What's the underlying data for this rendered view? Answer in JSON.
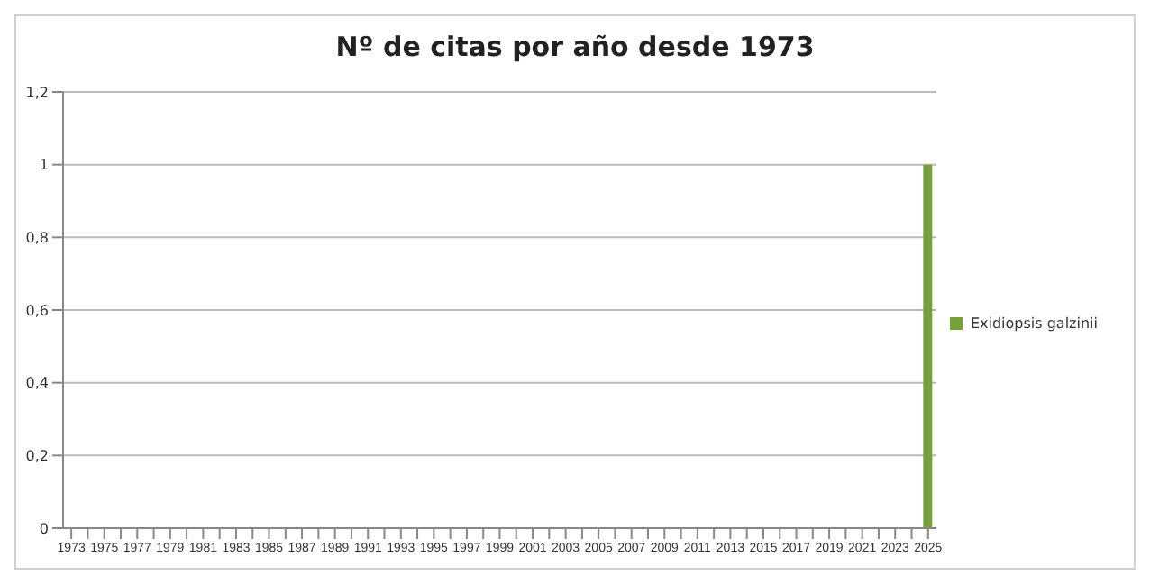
{
  "chart_data": {
    "type": "bar",
    "title": "Nº de citas por año desde 1973",
    "categories": [
      "1973",
      null,
      "1975",
      null,
      "1977",
      null,
      "1979",
      null,
      "1981",
      null,
      "1983",
      null,
      "1985",
      null,
      "1987",
      null,
      "1989",
      null,
      "1991",
      null,
      "1993",
      null,
      "1995",
      null,
      "1997",
      null,
      "1999",
      null,
      "2001",
      null,
      "2003",
      null,
      "2005",
      null,
      "2007",
      null,
      "2009",
      null,
      "2011",
      null,
      "2013",
      null,
      "2015",
      null,
      "2017",
      null,
      "2019",
      null,
      "2021",
      null,
      "2023",
      null,
      "2025"
    ],
    "series": [
      {
        "name": "Exidiopsis galzinii",
        "color": "#76a13a",
        "values": [
          0,
          0,
          0,
          0,
          0,
          0,
          0,
          0,
          0,
          0,
          0,
          0,
          0,
          0,
          0,
          0,
          0,
          0,
          0,
          0,
          0,
          0,
          0,
          0,
          0,
          0,
          0,
          0,
          0,
          0,
          0,
          0,
          0,
          0,
          0,
          0,
          0,
          0,
          0,
          0,
          0,
          0,
          0,
          0,
          0,
          0,
          0,
          0,
          0,
          0,
          0,
          0,
          1
        ]
      }
    ],
    "ylim": [
      0,
      1.2
    ],
    "yticks": [
      0,
      {
        "value": 0.2,
        "label": "0,2"
      },
      {
        "value": 0.4,
        "label": "0,4"
      },
      {
        "value": 0.6,
        "label": "0,6"
      },
      {
        "value": 0.8,
        "label": "0,8"
      },
      1,
      {
        "value": 1.2,
        "label": "1,2"
      }
    ],
    "grid": "y",
    "legend": "right"
  }
}
